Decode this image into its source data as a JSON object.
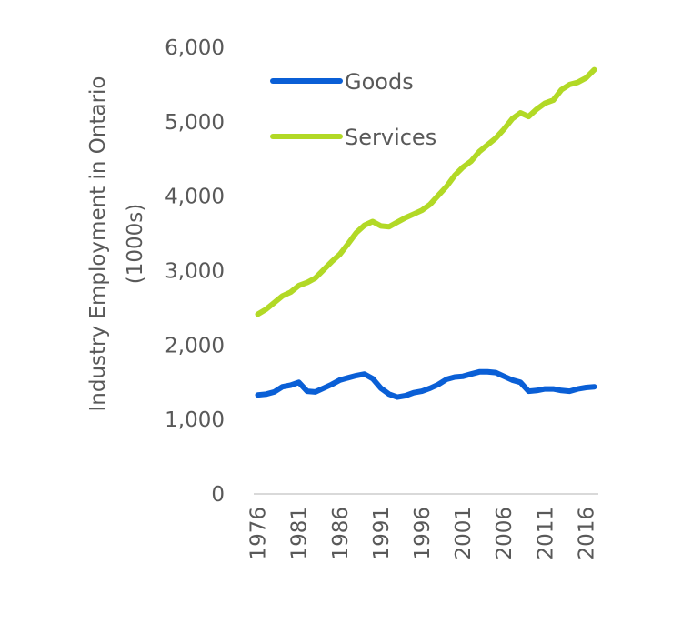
{
  "chart_data": {
    "type": "line",
    "title": "",
    "xlabel": "",
    "ylabel": "Industry Employment in Ontario (1000s)",
    "ylabel_lines": [
      "Industry Employment in Ontario",
      "(1000s)"
    ],
    "ylim": [
      0,
      6000
    ],
    "yticks": [
      0,
      1000,
      2000,
      3000,
      4000,
      5000,
      6000
    ],
    "ytick_labels": [
      "0",
      "1,000",
      "2,000",
      "3,000",
      "4,000",
      "5,000",
      "6,000"
    ],
    "x": [
      1976,
      1977,
      1978,
      1979,
      1980,
      1981,
      1982,
      1983,
      1984,
      1985,
      1986,
      1987,
      1988,
      1989,
      1990,
      1991,
      1992,
      1993,
      1994,
      1995,
      1996,
      1997,
      1998,
      1999,
      2000,
      2001,
      2002,
      2003,
      2004,
      2005,
      2006,
      2007,
      2008,
      2009,
      2010,
      2011,
      2012,
      2013,
      2014,
      2015,
      2016,
      2017
    ],
    "xtick_labels": [
      "1976",
      "1981",
      "1986",
      "1991",
      "1996",
      "2001",
      "2006",
      "2011",
      "2016"
    ],
    "grid": false,
    "legend_position": "top-left",
    "series": [
      {
        "name": "Goods",
        "color": "#0A5FD6",
        "values": [
          1330,
          1340,
          1370,
          1440,
          1460,
          1500,
          1380,
          1370,
          1420,
          1470,
          1530,
          1560,
          1590,
          1610,
          1550,
          1420,
          1340,
          1300,
          1320,
          1360,
          1380,
          1420,
          1470,
          1540,
          1570,
          1580,
          1610,
          1640,
          1640,
          1630,
          1580,
          1530,
          1500,
          1380,
          1390,
          1410,
          1410,
          1390,
          1380,
          1410,
          1430,
          1440
        ]
      },
      {
        "name": "Services",
        "color": "#B2D926",
        "values": [
          2415,
          2480,
          2570,
          2660,
          2710,
          2800,
          2840,
          2900,
          3010,
          3120,
          3220,
          3360,
          3510,
          3610,
          3660,
          3600,
          3590,
          3650,
          3710,
          3760,
          3810,
          3890,
          4010,
          4130,
          4280,
          4390,
          4470,
          4600,
          4690,
          4780,
          4900,
          5040,
          5120,
          5070,
          5170,
          5250,
          5290,
          5430,
          5500,
          5530,
          5590,
          5700
        ]
      }
    ],
    "axis_color": "#D9D9D9",
    "text_color": "#595959"
  }
}
